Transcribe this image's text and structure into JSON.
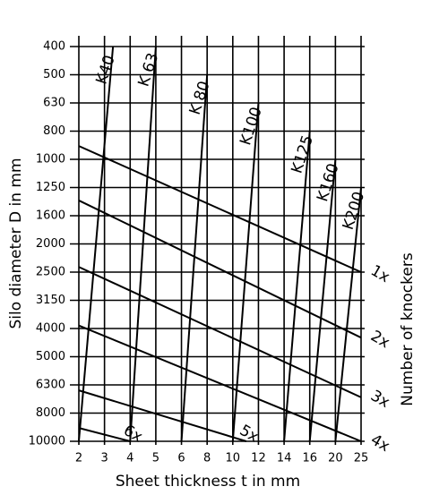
{
  "chart_data": {
    "type": "nomogram",
    "x_label": "Sheet thickness t in mm",
    "y_label": "Silo diameter D in mm",
    "y2_label": "Number of knockers",
    "xticks": [
      2,
      3,
      4,
      5,
      6,
      8,
      10,
      12,
      14,
      16,
      20,
      25
    ],
    "yticks": [
      400,
      500,
      630,
      800,
      1000,
      1250,
      1600,
      2000,
      2500,
      3150,
      4000,
      5000,
      6300,
      8000,
      10000
    ],
    "xlim": [
      2,
      25
    ],
    "ylim": [
      10000,
      400
    ],
    "grid": true,
    "color": "#000000",
    "thickness_lines": [
      {
        "name": "K40",
        "x": [
          2,
          3.3
        ],
        "y": [
          10000,
          400
        ]
      },
      {
        "name": "K 63",
        "x": [
          4,
          5
        ],
        "y": [
          10000,
          400
        ]
      },
      {
        "name": "K 80",
        "x": [
          6,
          8
        ],
        "y": [
          10000,
          500
        ]
      },
      {
        "name": "K100",
        "x": [
          10,
          12
        ],
        "y": [
          10000,
          630
        ]
      },
      {
        "name": "K125",
        "x": [
          14,
          16
        ],
        "y": [
          10000,
          800
        ]
      },
      {
        "name": "K160",
        "x": [
          16,
          20
        ],
        "y": [
          10000,
          1000
        ]
      },
      {
        "name": "K200",
        "x": [
          20,
          25
        ],
        "y": [
          10000,
          1250
        ]
      }
    ],
    "knocker_lines": [
      {
        "name": "1x",
        "x": [
          2,
          25
        ],
        "y": [
          900,
          2500
        ]
      },
      {
        "name": "2x",
        "x": [
          2,
          25
        ],
        "y": [
          1400,
          4300
        ]
      },
      {
        "name": "3x",
        "x": [
          2,
          25
        ],
        "y": [
          2400,
          7000
        ]
      },
      {
        "name": "4x",
        "x": [
          2,
          25
        ],
        "y": [
          3900,
          10000
        ]
      },
      {
        "name": "5x",
        "x": [
          2,
          11
        ],
        "y": [
          6600,
          10000
        ]
      },
      {
        "name": "6x",
        "x": [
          2,
          4
        ],
        "y": [
          9000,
          10000
        ]
      }
    ]
  }
}
